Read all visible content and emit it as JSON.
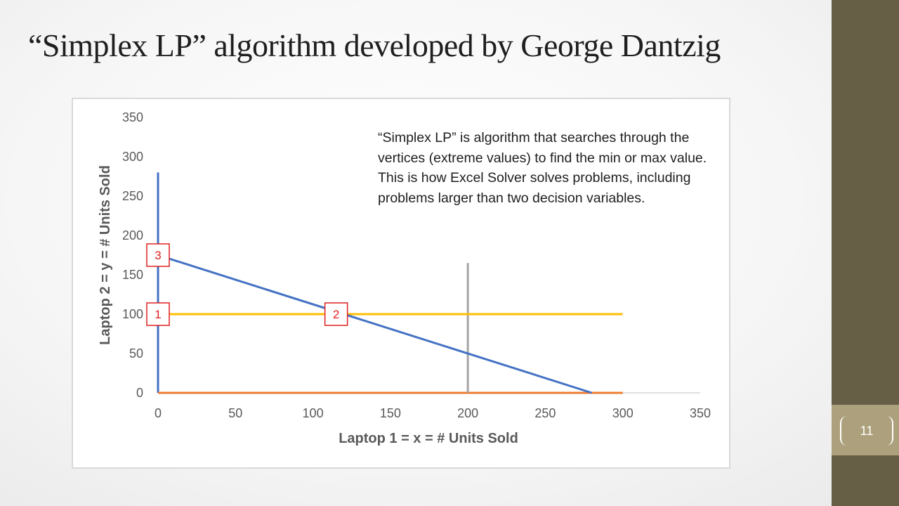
{
  "slide": {
    "title": "“Simplex LP” algorithm developed by George Dantzig",
    "page_number": "11",
    "note": "“Simplex LP” is algorithm that searches through the vertices (extreme values) to find the min or max value. This is how Excel Solver solves problems, including problems larger than two decision variables.",
    "colors": {
      "sidebar": "#665f46",
      "page_tab": "#ada07c"
    }
  },
  "chart_data": {
    "type": "line",
    "xlabel": "Laptop 1 = x = # Units Sold",
    "ylabel": "Laptop 2 = y = # Units Sold",
    "xlim": [
      0,
      350
    ],
    "ylim": [
      0,
      350
    ],
    "x_ticks": [
      0,
      50,
      100,
      150,
      200,
      250,
      300,
      350
    ],
    "y_ticks": [
      0,
      50,
      100,
      150,
      200,
      250,
      300,
      350
    ],
    "grid": false,
    "legend": false,
    "series": [
      {
        "color": "#4472c4",
        "points": [
          [
            0,
            0
          ],
          [
            0,
            280
          ]
        ]
      },
      {
        "color": "#ed7d31",
        "points": [
          [
            0,
            0
          ],
          [
            300,
            0
          ]
        ]
      },
      {
        "color": "#a5a5a5",
        "points": [
          [
            200,
            0
          ],
          [
            200,
            165
          ]
        ]
      },
      {
        "color": "#ffc000",
        "points": [
          [
            0,
            100
          ],
          [
            300,
            100
          ]
        ]
      },
      {
        "color": "#4472c4",
        "points": [
          [
            0,
            175
          ],
          [
            280,
            0
          ]
        ]
      }
    ],
    "annotations": [
      {
        "label": "1",
        "x": 0,
        "y": 100
      },
      {
        "label": "2",
        "x": 115,
        "y": 100
      },
      {
        "label": "3",
        "x": 0,
        "y": 175
      }
    ]
  }
}
